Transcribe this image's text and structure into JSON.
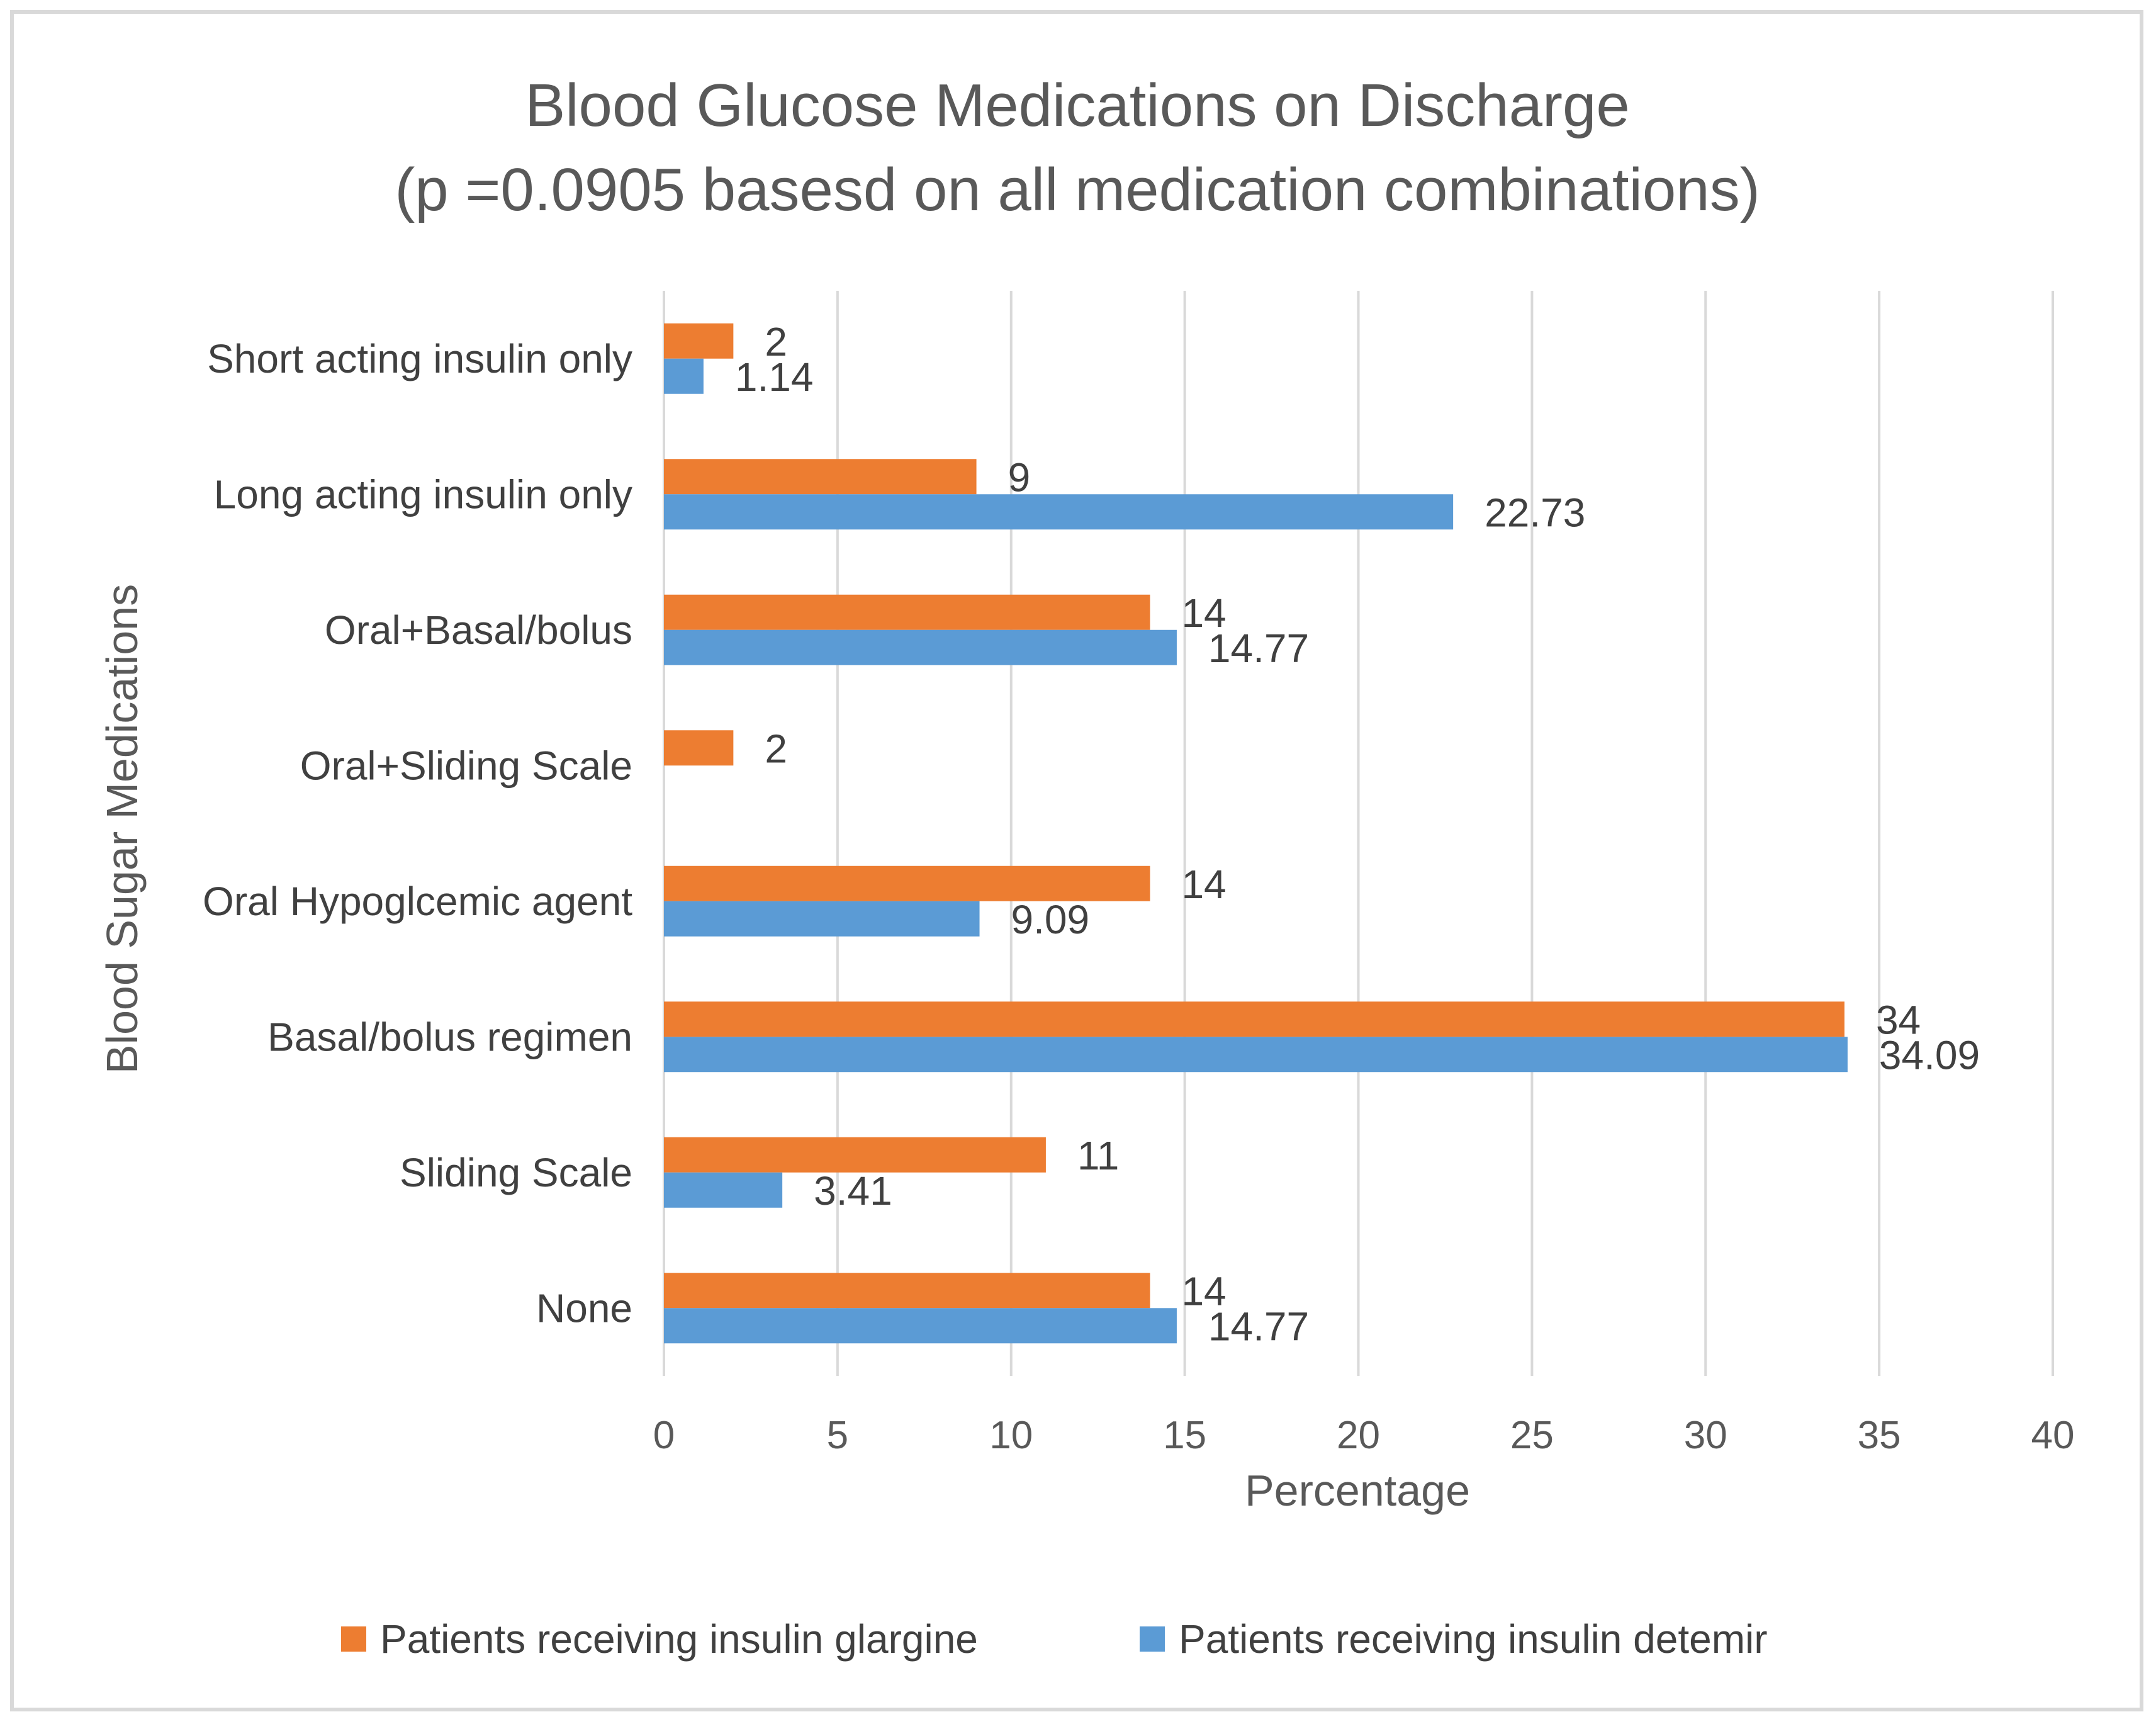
{
  "chart_data": {
    "type": "bar",
    "orientation": "horizontal",
    "title": "Blood Glucose Medications on Discharge",
    "subtitle": "(p =0.0905 basesd on all medication combinations)",
    "xlabel": "Percentage",
    "ylabel": "Blood Sugar Medications",
    "xlim": [
      0,
      40
    ],
    "xticks": [
      0,
      5,
      10,
      15,
      20,
      25,
      30,
      35,
      40
    ],
    "grid": true,
    "legend_position": "bottom",
    "categories": [
      "Short acting insulin only",
      "Long acting insulin only",
      "Oral+Basal/bolus",
      "Oral+Sliding Scale",
      "Oral Hypoglcemic agent",
      "Basal/bolus regimen",
      "Sliding Scale",
      "None"
    ],
    "series": [
      {
        "name": "Patients receiving insulin glargine",
        "color": "#ed7d31",
        "values": [
          2,
          9,
          14,
          2,
          14,
          34,
          11,
          14
        ],
        "labels": [
          "2",
          "9",
          "14",
          "2",
          "14",
          "34",
          "11",
          "14"
        ]
      },
      {
        "name": "Patients receiving insulin detemir",
        "color": "#5b9bd5",
        "values": [
          1.14,
          22.73,
          14.77,
          null,
          9.09,
          34.09,
          3.41,
          14.77
        ],
        "labels": [
          "1.14",
          "22.73",
          "14.77",
          "",
          "9.09",
          "34.09",
          "3.41",
          "14.77"
        ]
      }
    ]
  }
}
